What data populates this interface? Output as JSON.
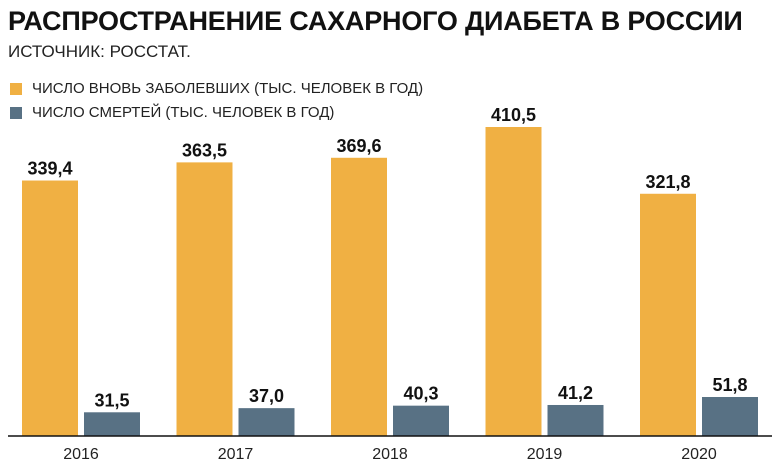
{
  "title": "РАСПРОСТРАНЕНИЕ САХАРНОГО ДИАБЕТА В РОССИИ",
  "source": "ИСТОЧНИК: РОССТАТ.",
  "colors": {
    "incidence": "#F0B043",
    "deaths": "#587184",
    "axis": "#111111"
  },
  "chart_data": {
    "type": "bar",
    "categories": [
      "2016",
      "2017",
      "2018",
      "2019",
      "2020"
    ],
    "series": [
      {
        "name": "ЧИСЛО ВНОВЬ ЗАБОЛЕВШИХ (ТЫС. ЧЕЛОВЕК В ГОД)",
        "values": [
          339.4,
          363.5,
          369.6,
          410.5,
          321.8
        ],
        "labels": [
          "339,4",
          "363,5",
          "369,6",
          "410,5",
          "321,8"
        ]
      },
      {
        "name": "ЧИСЛО СМЕРТЕЙ (ТЫС. ЧЕЛОВЕК В ГОД)",
        "values": [
          31.5,
          37.0,
          40.3,
          41.2,
          51.8
        ],
        "labels": [
          "31,5",
          "37,0",
          "40,3",
          "41,2",
          "51,8"
        ]
      }
    ],
    "ylim": [
      0,
      410.5
    ],
    "grid": false,
    "legend_position": "top-left"
  }
}
